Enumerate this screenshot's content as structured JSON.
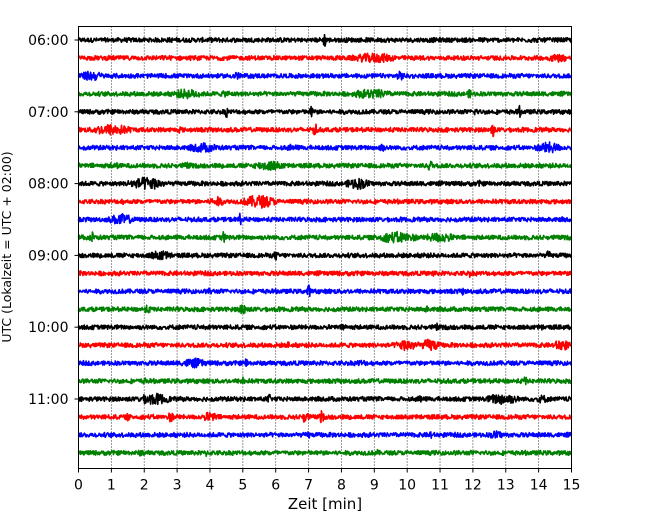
{
  "chart_data": {
    "type": "line",
    "title": "",
    "xlabel": "Zeit  [min]",
    "ylabel": "UTC (Lokalzeit = UTC + 02:00)",
    "xlim": [
      0,
      15
    ],
    "x_ticks": [
      0,
      1,
      2,
      3,
      4,
      5,
      6,
      7,
      8,
      9,
      10,
      11,
      12,
      13,
      14,
      15
    ],
    "x_tick_labels": [
      "0",
      "1",
      "2",
      "3",
      "4",
      "5",
      "6",
      "7",
      "8",
      "9",
      "10",
      "11",
      "12",
      "13",
      "14",
      "15"
    ],
    "row_interval_min": 15,
    "rows_start": "06:00",
    "rows_end": "11:45",
    "y_ticks": [
      {
        "label": "06:00",
        "row": 0
      },
      {
        "label": "07:00",
        "row": 4
      },
      {
        "label": "08:00",
        "row": 8
      },
      {
        "label": "09:00",
        "row": 12
      },
      {
        "label": "10:00",
        "row": 16
      },
      {
        "label": "11:00",
        "row": 20
      }
    ],
    "row_colors": [
      "#000000",
      "#ff0000",
      "#0000ff",
      "#008000"
    ],
    "grid": "vertical dotted lines at each minute",
    "series": [
      {
        "row": 0,
        "bursts": [
          [
            7.5,
            0.9,
            0.05
          ],
          [
            2.8,
            0.3,
            0.2
          ],
          [
            12.3,
            0.3,
            0.2
          ]
        ]
      },
      {
        "row": 1,
        "bursts": [
          [
            9.0,
            0.6,
            0.6
          ],
          [
            14.6,
            0.5,
            0.3
          ],
          [
            4.3,
            0.3,
            0.2
          ]
        ]
      },
      {
        "row": 2,
        "bursts": [
          [
            0.4,
            0.6,
            0.3
          ],
          [
            4.8,
            0.6,
            0.1
          ],
          [
            9.8,
            0.6,
            0.1
          ]
        ]
      },
      {
        "row": 3,
        "bursts": [
          [
            3.3,
            0.6,
            0.4
          ],
          [
            8.9,
            0.6,
            0.5
          ],
          [
            11.9,
            0.5,
            0.1
          ],
          [
            4.5,
            0.4,
            0.2
          ]
        ]
      },
      {
        "row": 4,
        "bursts": [
          [
            4.5,
            0.7,
            0.05
          ],
          [
            7.1,
            0.8,
            0.05
          ],
          [
            12.1,
            0.6,
            0.05
          ],
          [
            13.4,
            0.8,
            0.05
          ]
        ]
      },
      {
        "row": 5,
        "bursts": [
          [
            1.0,
            0.7,
            0.5
          ],
          [
            7.2,
            0.9,
            0.05
          ],
          [
            12.6,
            0.9,
            0.05
          ],
          [
            3.1,
            0.5,
            0.05
          ]
        ]
      },
      {
        "row": 6,
        "bursts": [
          [
            3.8,
            0.6,
            0.4
          ],
          [
            9.2,
            0.6,
            0.1
          ],
          [
            14.3,
            0.7,
            0.3
          ],
          [
            6.5,
            0.4,
            0.2
          ]
        ]
      },
      {
        "row": 7,
        "bursts": [
          [
            5.8,
            0.6,
            0.4
          ],
          [
            10.7,
            0.8,
            0.05
          ],
          [
            1.1,
            0.4,
            0.2
          ],
          [
            3.3,
            0.4,
            0.2
          ]
        ]
      },
      {
        "row": 8,
        "bursts": [
          [
            2.1,
            0.8,
            0.4
          ],
          [
            8.5,
            0.7,
            0.3
          ],
          [
            1.6,
            0.5,
            0.15
          ],
          [
            12.2,
            0.4,
            0.1
          ]
        ]
      },
      {
        "row": 9,
        "bursts": [
          [
            5.5,
            0.8,
            0.4
          ],
          [
            4.2,
            0.6,
            0.2
          ],
          [
            1.3,
            0.4,
            0.1
          ]
        ]
      },
      {
        "row": 10,
        "bursts": [
          [
            1.3,
            0.7,
            0.3
          ],
          [
            4.9,
            0.8,
            0.05
          ]
        ]
      },
      {
        "row": 11,
        "bursts": [
          [
            0.4,
            0.8,
            0.05
          ],
          [
            4.4,
            0.8,
            0.05
          ],
          [
            9.7,
            0.7,
            0.5
          ],
          [
            11.0,
            0.6,
            0.4
          ]
        ]
      },
      {
        "row": 12,
        "bursts": [
          [
            2.5,
            0.6,
            0.3
          ],
          [
            6.0,
            0.6,
            0.05
          ],
          [
            14.3,
            0.6,
            0.05
          ],
          [
            10.5,
            0.4,
            0.1
          ]
        ]
      },
      {
        "row": 13,
        "bursts": [
          [
            10.8,
            0.5,
            0.05
          ],
          [
            11.9,
            0.5,
            0.05
          ],
          [
            8.4,
            0.4,
            0.05
          ]
        ]
      },
      {
        "row": 14,
        "bursts": [
          [
            7.0,
            0.8,
            0.05
          ],
          [
            11.7,
            0.5,
            0.05
          ],
          [
            4.0,
            0.4,
            0.1
          ]
        ]
      },
      {
        "row": 15,
        "bursts": [
          [
            2.1,
            0.5,
            0.1
          ],
          [
            5.0,
            0.7,
            0.1
          ],
          [
            10.6,
            0.4,
            0.1
          ]
        ]
      },
      {
        "row": 16,
        "bursts": [
          [
            4.0,
            0.5,
            0.05
          ],
          [
            8.1,
            0.6,
            0.05
          ],
          [
            10.9,
            0.5,
            0.05
          ],
          [
            14.1,
            0.4,
            0.05
          ]
        ]
      },
      {
        "row": 17,
        "bursts": [
          [
            10.0,
            0.7,
            0.3
          ],
          [
            10.7,
            0.8,
            0.2
          ],
          [
            14.7,
            0.7,
            0.2
          ],
          [
            6.4,
            0.5,
            0.05
          ]
        ]
      },
      {
        "row": 18,
        "bursts": [
          [
            3.5,
            0.6,
            0.3
          ],
          [
            5.1,
            0.6,
            0.05
          ],
          [
            8.6,
            0.4,
            0.2
          ]
        ]
      },
      {
        "row": 19,
        "bursts": [
          [
            5.0,
            0.7,
            0.05
          ],
          [
            13.6,
            0.6,
            0.05
          ],
          [
            2.0,
            0.4,
            0.1
          ]
        ]
      },
      {
        "row": 20,
        "bursts": [
          [
            2.3,
            0.7,
            0.4
          ],
          [
            5.8,
            0.6,
            0.05
          ],
          [
            10.4,
            0.7,
            0.05
          ],
          [
            12.9,
            0.7,
            0.4
          ],
          [
            14.1,
            0.5,
            0.2
          ]
        ]
      },
      {
        "row": 21,
        "bursts": [
          [
            2.8,
            0.6,
            0.1
          ],
          [
            4.0,
            0.6,
            0.2
          ],
          [
            6.9,
            0.7,
            0.1
          ],
          [
            7.4,
            0.8,
            0.05
          ],
          [
            1.5,
            0.5,
            0.05
          ]
        ]
      },
      {
        "row": 22,
        "bursts": [
          [
            7.0,
            0.5,
            0.05
          ],
          [
            10.7,
            0.6,
            0.05
          ],
          [
            12.7,
            0.5,
            0.2
          ]
        ]
      },
      {
        "row": 23,
        "bursts": [
          [
            3.9,
            0.5,
            0.05
          ],
          [
            9.1,
            0.4,
            0.05
          ],
          [
            1.9,
            0.4,
            0.1
          ]
        ]
      }
    ]
  }
}
